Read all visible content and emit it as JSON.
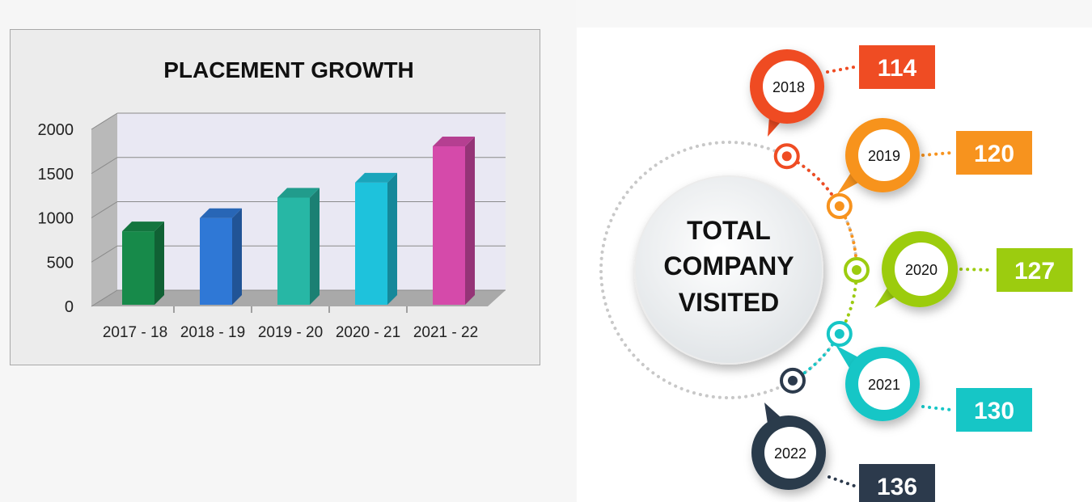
{
  "chart_data": {
    "type": "bar",
    "title": "PLACEMENT GROWTH",
    "categories": [
      "2017 - 18",
      "2018 - 19",
      "2019 - 20",
      "2020 - 21",
      "2021 - 22"
    ],
    "values": [
      830,
      980,
      1210,
      1380,
      1790
    ],
    "ylim": [
      0,
      2000
    ],
    "yticks": [
      "0",
      "500",
      "1000",
      "1500",
      "2000"
    ],
    "xlabel": "",
    "ylabel": "",
    "grid": true,
    "legend": "none",
    "colors": [
      "#178a4a",
      "#2f78d6",
      "#27b7a5",
      "#1ec2dc",
      "#d54aaa"
    ]
  },
  "infographic": {
    "center_lines": [
      "TOTAL",
      "COMPANY",
      "VISITED"
    ],
    "years": [
      {
        "year": "2018",
        "count": "114",
        "color": "#ef4c23"
      },
      {
        "year": "2019",
        "count": "120",
        "color": "#f7931e"
      },
      {
        "year": "2020",
        "count": "127",
        "color": "#9ccc0f"
      },
      {
        "year": "2021",
        "count": "130",
        "color": "#16c6c6"
      },
      {
        "year": "2022",
        "count": "136",
        "color": "#2c3a4c"
      }
    ]
  }
}
